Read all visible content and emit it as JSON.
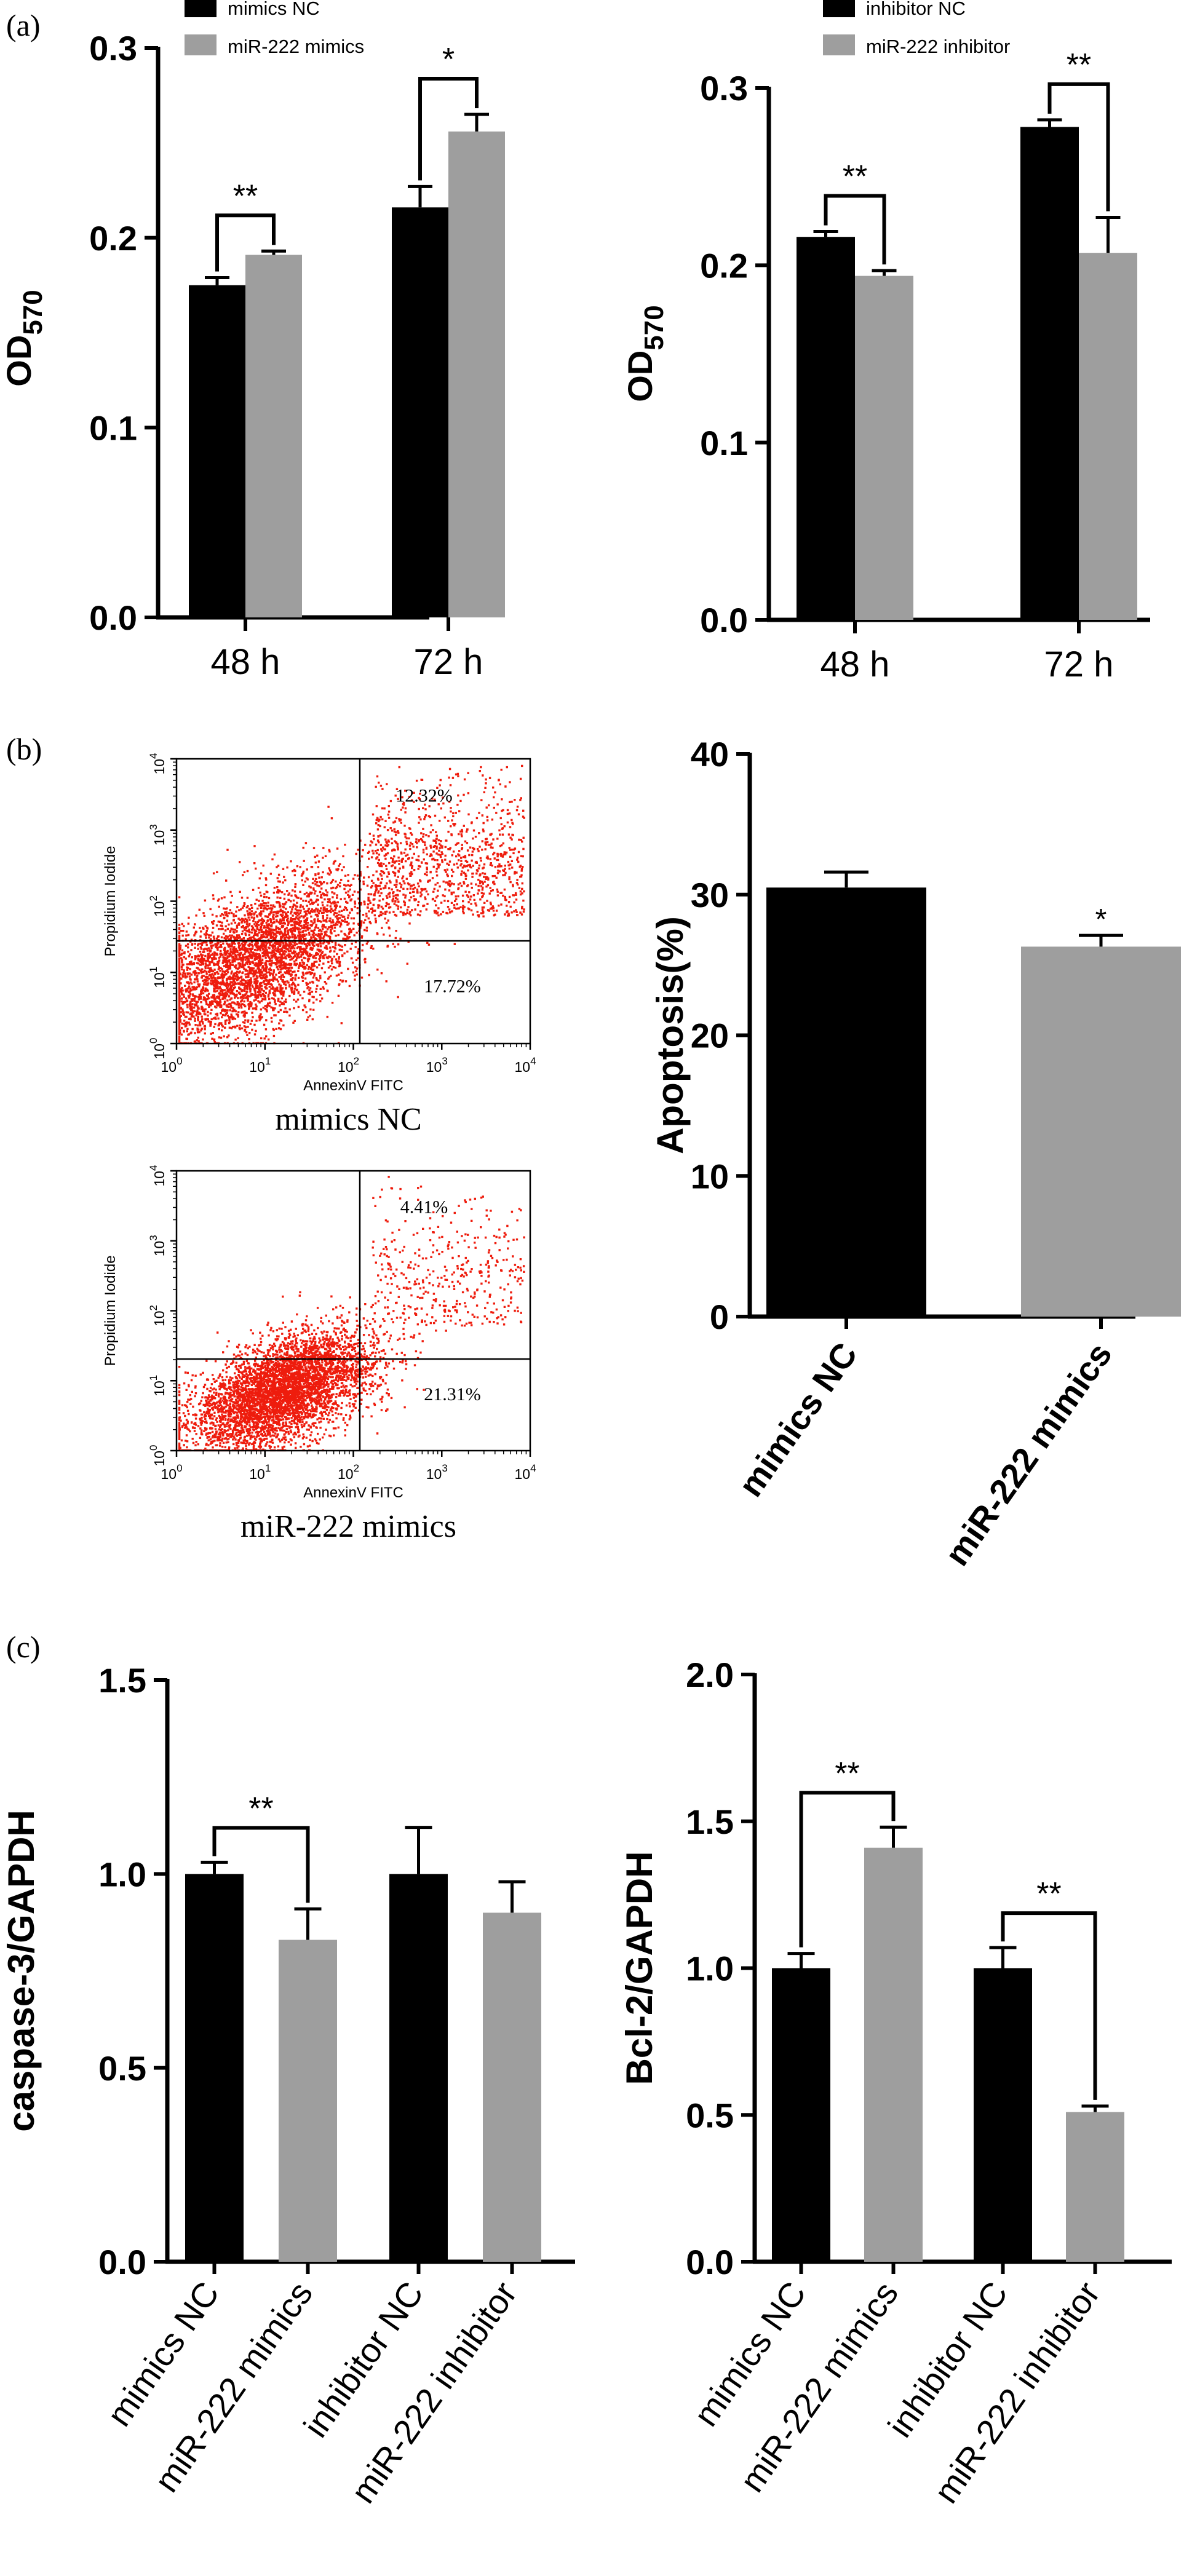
{
  "panel_labels": [
    "(a)",
    "(b)",
    "(c)"
  ],
  "colors": {
    "nc": "#000000",
    "treated": "#9e9e9e",
    "dots": "#ee1c0d",
    "axis": "#000000"
  },
  "chart_data": [
    {
      "id": "a_left",
      "type": "bar",
      "panel": "(a)",
      "categories": [
        "48 h",
        "72 h"
      ],
      "series": [
        {
          "name": "mimics NC",
          "values": [
            0.175,
            0.216
          ],
          "errors": [
            0.004,
            0.011
          ]
        },
        {
          "name": "miR-222 mimics",
          "values": [
            0.191,
            0.256
          ],
          "errors": [
            0.002,
            0.009
          ]
        }
      ],
      "ylabel": "OD570",
      "ylim": [
        0,
        0.3
      ],
      "yticks": [
        "0.0",
        "0.1",
        "0.2",
        "0.3"
      ],
      "legend": "top-left",
      "significance": [
        {
          "category": 0,
          "text": "**"
        },
        {
          "category": 1,
          "text": "*"
        }
      ]
    },
    {
      "id": "a_right",
      "type": "bar",
      "panel": "(a)",
      "categories": [
        "48 h",
        "72 h"
      ],
      "series": [
        {
          "name": "inhibitor NC",
          "values": [
            0.216,
            0.278
          ],
          "errors": [
            0.003,
            0.004
          ]
        },
        {
          "name": "miR-222 inhibitor",
          "values": [
            0.194,
            0.207
          ],
          "errors": [
            0.003,
            0.02
          ]
        }
      ],
      "ylabel": "OD570",
      "ylim": [
        0,
        0.3
      ],
      "yticks": [
        "0.0",
        "0.1",
        "0.2",
        "0.3"
      ],
      "legend": "top-left",
      "significance": [
        {
          "category": 0,
          "text": "**"
        },
        {
          "category": 1,
          "text": "**"
        }
      ]
    },
    {
      "id": "b_scatter_top",
      "type": "scatter",
      "panel": "(b)",
      "title": "mimics NC",
      "xlabel": "AnnexinV FITC",
      "ylabel": "Propidium Iodide",
      "quadrants": {
        "upper_right": "12.32%",
        "lower_right": "17.72%"
      }
    },
    {
      "id": "b_scatter_bottom",
      "type": "scatter",
      "panel": "(b)",
      "title": "miR-222 mimics",
      "xlabel": "AnnexinV FITC",
      "ylabel": "Propidium Iodide",
      "quadrants": {
        "upper_right": "4.41%",
        "lower_right": "21.31%"
      }
    },
    {
      "id": "b_bar",
      "type": "bar",
      "panel": "(b)",
      "categories": [
        "mimics NC",
        "miR-222 mimics"
      ],
      "values": [
        30.5,
        26.3
      ],
      "errors": [
        1.1,
        0.8
      ],
      "ylabel": "Apoptosis(%)",
      "ylim": [
        0,
        40
      ],
      "yticks": [
        "0",
        "10",
        "20",
        "30",
        "40"
      ],
      "significance": [
        {
          "bar": 1,
          "text": "*"
        }
      ]
    },
    {
      "id": "c_left",
      "type": "bar",
      "panel": "(c)",
      "categories": [
        "mimics NC",
        "miR-222 mimics",
        "inhibitor NC",
        "miR-222 inhibitor"
      ],
      "values": [
        1.0,
        0.83,
        1.0,
        0.9
      ],
      "errors": [
        0.03,
        0.08,
        0.12,
        0.08
      ],
      "ylabel": "caspase-3/GAPDH",
      "ylim": [
        0,
        1.5
      ],
      "yticks": [
        "0.0",
        "0.5",
        "1.0",
        "1.5"
      ],
      "significance": [
        {
          "pair": [
            0,
            1
          ],
          "text": "**"
        }
      ]
    },
    {
      "id": "c_right",
      "type": "bar",
      "panel": "(c)",
      "categories": [
        "mimics NC",
        "miR-222 mimics",
        "inhibitor NC",
        "miR-222 inhibitor"
      ],
      "values": [
        1.0,
        1.41,
        1.0,
        0.51
      ],
      "errors": [
        0.05,
        0.07,
        0.07,
        0.02
      ],
      "ylabel": "Bcl-2/GAPDH",
      "ylim": [
        0,
        2.0
      ],
      "yticks": [
        "0.0",
        "0.5",
        "1.0",
        "1.5",
        "2.0"
      ],
      "significance": [
        {
          "pair": [
            0,
            1
          ],
          "text": "**"
        },
        {
          "pair": [
            2,
            3
          ],
          "text": "**"
        }
      ]
    }
  ],
  "flow_ticks": [
    "10",
    "0",
    "1",
    "2",
    "3",
    "4"
  ]
}
